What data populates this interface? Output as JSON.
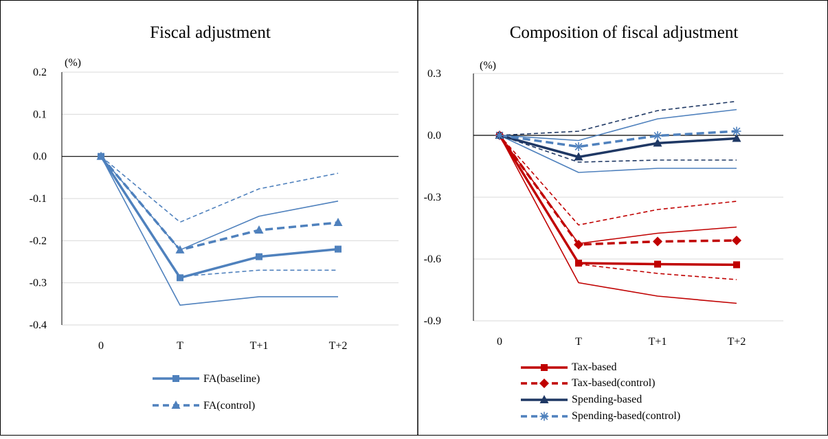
{
  "panels": [
    {
      "title": "Fiscal adjustment",
      "unit_label": "(%)",
      "legend": [
        "FA(baseline)",
        "FA(control)"
      ]
    },
    {
      "title": "Composition of fiscal adjustment",
      "unit_label": "(%)",
      "legend": [
        "Tax-based",
        "Tax-based(control)",
        "Spending-based",
        "Spending-based(control)"
      ]
    }
  ],
  "chart_data": [
    {
      "type": "line",
      "title": "Fiscal adjustment",
      "categories": [
        "0",
        "T",
        "T+1",
        "T+2"
      ],
      "ylim": [
        -0.4,
        0.2
      ],
      "yticks": [
        0.2,
        0.1,
        0.0,
        -0.1,
        -0.2,
        -0.3,
        -0.4
      ],
      "ytick_labels": [
        "0.2",
        "0.1",
        "0.0",
        "-0.1",
        "-0.2",
        "-0.3",
        "-0.4"
      ],
      "grid": true,
      "legend_position": "bottom",
      "series": [
        {
          "name": "FA(baseline)",
          "values": [
            0,
            -0.288,
            -0.238,
            -0.22
          ],
          "color": "#4f81bd",
          "style": "solid",
          "width": 3.5,
          "marker": "square"
        },
        {
          "name": "FA(control)",
          "values": [
            0,
            -0.222,
            -0.175,
            -0.157
          ],
          "color": "#4f81bd",
          "style": "dashed",
          "width": 3.5,
          "marker": "triangle"
        },
        {
          "values": [
            0,
            -0.353,
            -0.333,
            -0.333
          ],
          "color": "#4f81bd",
          "style": "solid",
          "width": 1.6,
          "marker": "none"
        },
        {
          "values": [
            0,
            -0.222,
            -0.142,
            -0.106
          ],
          "color": "#4f81bd",
          "style": "solid",
          "width": 1.6,
          "marker": "none"
        },
        {
          "values": [
            0,
            -0.285,
            -0.27,
            -0.27
          ],
          "color": "#4f81bd",
          "style": "dashed",
          "width": 1.6,
          "marker": "none"
        },
        {
          "values": [
            0,
            -0.156,
            -0.077,
            -0.04
          ],
          "color": "#4f81bd",
          "style": "dashed",
          "width": 1.6,
          "marker": "none"
        }
      ]
    },
    {
      "type": "line",
      "title": "Composition of fiscal adjustment",
      "categories": [
        "0",
        "T",
        "T+1",
        "T+2"
      ],
      "ylim": [
        -0.9,
        0.3
      ],
      "yticks": [
        0.3,
        0.0,
        -0.3,
        -0.6,
        -0.9
      ],
      "ytick_labels": [
        "0.3",
        "0.0",
        "-0.3",
        "-0.6",
        "-0.9"
      ],
      "grid": true,
      "legend_position": "bottom",
      "series": [
        {
          "values": [
            0,
            -0.715,
            -0.78,
            -0.815
          ],
          "color": "#c00000",
          "style": "solid",
          "width": 1.6,
          "marker": "none"
        },
        {
          "values": [
            0,
            -0.525,
            -0.475,
            -0.445
          ],
          "color": "#c00000",
          "style": "solid",
          "width": 1.6,
          "marker": "none"
        },
        {
          "values": [
            0,
            -0.625,
            -0.67,
            -0.7
          ],
          "color": "#c00000",
          "style": "dashed",
          "width": 1.6,
          "marker": "none"
        },
        {
          "values": [
            0,
            -0.435,
            -0.36,
            -0.32
          ],
          "color": "#c00000",
          "style": "dashed",
          "width": 1.6,
          "marker": "none"
        },
        {
          "values": [
            0,
            -0.18,
            -0.16,
            -0.16
          ],
          "color": "#4f81bd",
          "style": "solid",
          "width": 1.6,
          "marker": "none"
        },
        {
          "values": [
            0,
            -0.025,
            0.08,
            0.125
          ],
          "color": "#4f81bd",
          "style": "solid",
          "width": 1.6,
          "marker": "none"
        },
        {
          "values": [
            0,
            -0.13,
            -0.12,
            -0.12
          ],
          "color": "#1f3864",
          "style": "dashed",
          "width": 1.6,
          "marker": "none"
        },
        {
          "values": [
            0,
            0.02,
            0.12,
            0.165
          ],
          "color": "#1f3864",
          "style": "dashed",
          "width": 1.6,
          "marker": "none"
        },
        {
          "name": "Tax-based",
          "values": [
            0,
            -0.62,
            -0.625,
            -0.628
          ],
          "color": "#c00000",
          "style": "solid",
          "width": 3.5,
          "marker": "square"
        },
        {
          "name": "Tax-based(control)",
          "values": [
            0,
            -0.53,
            -0.515,
            -0.51
          ],
          "color": "#c00000",
          "style": "dashed",
          "width": 3.5,
          "marker": "diamond"
        },
        {
          "name": "Spending-based",
          "values": [
            0,
            -0.105,
            -0.038,
            -0.015
          ],
          "color": "#1f3864",
          "style": "solid",
          "width": 3.5,
          "marker": "triangle"
        },
        {
          "name": "Spending-based(control)",
          "values": [
            0,
            -0.055,
            -0.002,
            0.02
          ],
          "color": "#4f81bd",
          "style": "dashed",
          "width": 3.5,
          "marker": "star"
        }
      ]
    }
  ]
}
